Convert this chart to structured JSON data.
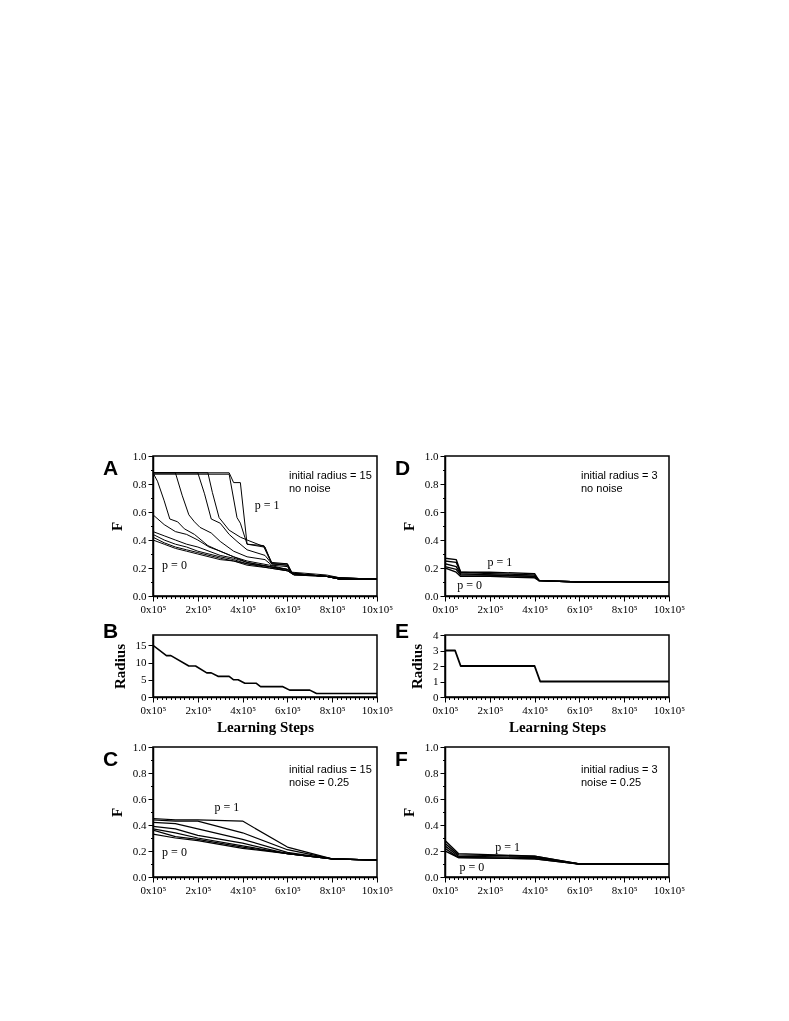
{
  "chart_data": [
    {
      "type": "line",
      "title": "A",
      "ylabel": "F",
      "annotations": [
        "initial radius = 15\nno noise",
        "p = 1",
        "p = 0"
      ],
      "xlim": [
        0,
        1000000
      ],
      "ylim": [
        0,
        1
      ],
      "xticks": [
        {
          "value": 0,
          "label": "0x10⁵"
        },
        {
          "value": 20000,
          "label": null
        },
        {
          "value": 40000,
          "label": null
        },
        {
          "value": 60000,
          "label": null
        },
        {
          "value": 80000,
          "label": null
        },
        {
          "value": 100000,
          "label": null
        },
        {
          "value": 120000,
          "label": null
        },
        {
          "value": 140000,
          "label": null
        },
        {
          "value": 160000,
          "label": null
        },
        {
          "value": 180000,
          "label": null
        },
        {
          "value": 200000,
          "label": "2x10⁵"
        },
        {
          "value": 220000,
          "label": null
        },
        {
          "value": 240000,
          "label": null
        },
        {
          "value": 260000,
          "label": null
        },
        {
          "value": 280000,
          "label": null
        },
        {
          "value": 300000,
          "label": null
        },
        {
          "value": 320000,
          "label": null
        },
        {
          "value": 340000,
          "label": null
        },
        {
          "value": 360000,
          "label": null
        },
        {
          "value": 380000,
          "label": null
        },
        {
          "value": 400000,
          "label": "4x10⁵"
        },
        {
          "value": 420000,
          "label": null
        },
        {
          "value": 440000,
          "label": null
        },
        {
          "value": 460000,
          "label": null
        },
        {
          "value": 480000,
          "label": null
        },
        {
          "value": 500000,
          "label": null
        },
        {
          "value": 520000,
          "label": null
        },
        {
          "value": 540000,
          "label": null
        },
        {
          "value": 560000,
          "label": null
        },
        {
          "value": 580000,
          "label": null
        },
        {
          "value": 600000,
          "label": "6x10⁵"
        },
        {
          "value": 620000,
          "label": null
        },
        {
          "value": 640000,
          "label": null
        },
        {
          "value": 660000,
          "label": null
        },
        {
          "value": 680000,
          "label": null
        },
        {
          "value": 700000,
          "label": null
        },
        {
          "value": 720000,
          "label": null
        },
        {
          "value": 740000,
          "label": null
        },
        {
          "value": 760000,
          "label": null
        },
        {
          "value": 780000,
          "label": null
        },
        {
          "value": 800000,
          "label": "8x10⁵"
        },
        {
          "value": 820000,
          "label": null
        },
        {
          "value": 840000,
          "label": null
        },
        {
          "value": 860000,
          "label": null
        },
        {
          "value": 880000,
          "label": null
        },
        {
          "value": 900000,
          "label": null
        },
        {
          "value": 920000,
          "label": null
        },
        {
          "value": 940000,
          "label": null
        },
        {
          "value": 960000,
          "label": null
        },
        {
          "value": 980000,
          "label": null
        },
        {
          "value": 1000000,
          "label": "10x10⁵"
        }
      ],
      "yticks": [
        {
          "value": 0,
          "label": "0.0"
        },
        {
          "value": 0.1,
          "label": null
        },
        0.2,
        {
          "value": 0.3,
          "label": null
        },
        0.4,
        {
          "value": 0.5,
          "label": null
        },
        0.6,
        {
          "value": 0.7,
          "label": null
        },
        0.8,
        {
          "value": 0.9,
          "label": null
        },
        {
          "value": 1,
          "label": "1.0"
        }
      ],
      "x": [
        0,
        50000,
        100000,
        150000,
        200000,
        250000,
        300000,
        360000,
        420000,
        520000,
        600000,
        630000,
        775000,
        835000,
        1000000
      ],
      "series": [
        {
          "color": "#000000",
          "values": [
            0.4,
            0.37,
            0.34,
            0.32,
            0.3,
            0.28,
            0.26,
            0.25,
            0.22,
            0.2,
            0.18,
            0.15,
            0.14,
            0.12,
            0.12
          ]
        },
        {
          "color": "#000000",
          "values": [
            0.42,
            0.38,
            0.35,
            0.33,
            0.31,
            0.29,
            0.27,
            0.25,
            0.23,
            0.2,
            0.18,
            0.15,
            0.14,
            0.12,
            0.12
          ]
        },
        {
          "color": "#000000",
          "values": [
            0.44,
            0.4,
            0.37,
            0.35,
            0.32,
            0.3,
            0.28,
            0.26,
            0.23,
            0.21,
            0.18,
            0.16,
            0.14,
            0.12,
            0.12
          ]
        },
        {
          "color": "#000000",
          "values": [
            0.46,
            0.43,
            0.4,
            0.37,
            0.35,
            0.32,
            0.29,
            0.27,
            0.24,
            0.21,
            0.19,
            0.16,
            0.14,
            0.12,
            0.12
          ]
        },
        {
          "color": "#000000",
          "values": [
            0.58,
            0.51,
            0.46,
            0.44,
            0.4,
            0.35,
            0.32,
            0.28,
            0.25,
            0.22,
            0.19,
            0.16,
            0.14,
            0.12,
            0.12
          ]
        },
        {
          "color": "#000000",
          "x": [
            0,
            20000,
            50000,
            75000,
            110000,
            140000,
            185000,
            245000,
            300000,
            360000,
            420000,
            520000,
            600000,
            630000,
            775000,
            835000,
            1000000
          ],
          "values": [
            0.88,
            0.82,
            0.68,
            0.55,
            0.53,
            0.48,
            0.44,
            0.36,
            0.32,
            0.28,
            0.24,
            0.21,
            0.19,
            0.16,
            0.14,
            0.12,
            0.12
          ]
        },
        {
          "color": "#000000",
          "x": [
            0,
            100000,
            130000,
            160000,
            185000,
            210000,
            260000,
            300000,
            360000,
            420000,
            500000,
            530000,
            600000,
            620000,
            775000,
            835000,
            1000000
          ],
          "values": [
            0.88,
            0.88,
            0.72,
            0.58,
            0.53,
            0.49,
            0.45,
            0.39,
            0.32,
            0.28,
            0.26,
            0.22,
            0.21,
            0.16,
            0.14,
            0.12,
            0.12
          ]
        },
        {
          "color": "#000000",
          "x": [
            0,
            200000,
            230000,
            260000,
            300000,
            340000,
            375000,
            420000,
            500000,
            530000,
            600000,
            620000,
            775000,
            835000,
            1000000
          ],
          "values": [
            0.88,
            0.88,
            0.73,
            0.55,
            0.52,
            0.44,
            0.39,
            0.33,
            0.29,
            0.23,
            0.22,
            0.16,
            0.14,
            0.13,
            0.12
          ]
        },
        {
          "color": "#000000",
          "x": [
            0,
            245000,
            265000,
            295000,
            340000,
            390000,
            420000,
            500000,
            530000,
            600000,
            620000,
            775000,
            835000,
            1000000
          ],
          "values": [
            0.88,
            0.88,
            0.74,
            0.56,
            0.47,
            0.42,
            0.4,
            0.35,
            0.23,
            0.22,
            0.16,
            0.14,
            0.13,
            0.12
          ]
        },
        {
          "color": "#000000",
          "x": [
            0,
            340000,
            375000,
            390000,
            420000,
            495000,
            530000,
            600000,
            620000,
            775000,
            835000,
            1000000
          ],
          "values": [
            0.87,
            0.87,
            0.56,
            0.52,
            0.37,
            0.35,
            0.23,
            0.23,
            0.16,
            0.14,
            0.13,
            0.12
          ]
        },
        {
          "color": "#000000",
          "x": [
            0,
            340000,
            360000,
            390000,
            420000,
            495000,
            530000,
            600000,
            620000,
            775000,
            835000,
            1000000
          ],
          "values": [
            0.88,
            0.88,
            0.81,
            0.81,
            0.37,
            0.36,
            0.24,
            0.23,
            0.17,
            0.15,
            0.13,
            0.12
          ]
        }
      ]
    },
    {
      "type": "line",
      "title": "D",
      "ylabel": "F",
      "annotations": [
        "initial radius = 3\nno noise",
        "p = 1",
        "p = 0"
      ],
      "xlim": [
        0,
        1000000
      ],
      "ylim": [
        0,
        1
      ],
      "xticks": [
        {
          "value": 0,
          "label": "0x10⁵"
        },
        {
          "value": 20000,
          "label": null
        },
        {
          "value": 40000,
          "label": null
        },
        {
          "value": 60000,
          "label": null
        },
        {
          "value": 80000,
          "label": null
        },
        {
          "value": 100000,
          "label": null
        },
        {
          "value": 120000,
          "label": null
        },
        {
          "value": 140000,
          "label": null
        },
        {
          "value": 160000,
          "label": null
        },
        {
          "value": 180000,
          "label": null
        },
        {
          "value": 200000,
          "label": "2x10⁵"
        },
        {
          "value": 220000,
          "label": null
        },
        {
          "value": 240000,
          "label": null
        },
        {
          "value": 260000,
          "label": null
        },
        {
          "value": 280000,
          "label": null
        },
        {
          "value": 300000,
          "label": null
        },
        {
          "value": 320000,
          "label": null
        },
        {
          "value": 340000,
          "label": null
        },
        {
          "value": 360000,
          "label": null
        },
        {
          "value": 380000,
          "label": null
        },
        {
          "value": 400000,
          "label": "4x10⁵"
        },
        {
          "value": 420000,
          "label": null
        },
        {
          "value": 440000,
          "label": null
        },
        {
          "value": 460000,
          "label": null
        },
        {
          "value": 480000,
          "label": null
        },
        {
          "value": 500000,
          "label": null
        },
        {
          "value": 520000,
          "label": null
        },
        {
          "value": 540000,
          "label": null
        },
        {
          "value": 560000,
          "label": null
        },
        {
          "value": 580000,
          "label": null
        },
        {
          "value": 600000,
          "label": "6x10⁵"
        },
        {
          "value": 620000,
          "label": null
        },
        {
          "value": 640000,
          "label": null
        },
        {
          "value": 660000,
          "label": null
        },
        {
          "value": 680000,
          "label": null
        },
        {
          "value": 700000,
          "label": null
        },
        {
          "value": 720000,
          "label": null
        },
        {
          "value": 740000,
          "label": null
        },
        {
          "value": 760000,
          "label": null
        },
        {
          "value": 780000,
          "label": null
        },
        {
          "value": 800000,
          "label": "8x10⁵"
        },
        {
          "value": 820000,
          "label": null
        },
        {
          "value": 840000,
          "label": null
        },
        {
          "value": 860000,
          "label": null
        },
        {
          "value": 880000,
          "label": null
        },
        {
          "value": 900000,
          "label": null
        },
        {
          "value": 920000,
          "label": null
        },
        {
          "value": 940000,
          "label": null
        },
        {
          "value": 960000,
          "label": null
        },
        {
          "value": 980000,
          "label": null
        },
        {
          "value": 1000000,
          "label": "10x10⁵"
        }
      ],
      "yticks": [
        {
          "value": 0,
          "label": "0.0"
        },
        {
          "value": 0.1,
          "label": null
        },
        0.2,
        {
          "value": 0.3,
          "label": null
        },
        0.4,
        {
          "value": 0.5,
          "label": null
        },
        0.6,
        {
          "value": 0.7,
          "label": null
        },
        0.8,
        {
          "value": 0.9,
          "label": null
        },
        {
          "value": 1,
          "label": "1.0"
        }
      ],
      "x": [
        0,
        50000,
        70000,
        200000,
        400000,
        420000,
        600000,
        1000000
      ],
      "series": [
        {
          "color": "#000000",
          "values": [
            0.2,
            0.17,
            0.14,
            0.14,
            0.13,
            0.11,
            0.1,
            0.1
          ]
        },
        {
          "color": "#000000",
          "values": [
            0.21,
            0.19,
            0.15,
            0.15,
            0.14,
            0.11,
            0.1,
            0.1
          ]
        },
        {
          "color": "#000000",
          "values": [
            0.23,
            0.21,
            0.16,
            0.15,
            0.14,
            0.11,
            0.1,
            0.1
          ]
        },
        {
          "color": "#000000",
          "values": [
            0.25,
            0.24,
            0.17,
            0.16,
            0.15,
            0.11,
            0.1,
            0.1
          ]
        },
        {
          "color": "#000000",
          "values": [
            0.27,
            0.26,
            0.17,
            0.17,
            0.16,
            0.11,
            0.1,
            0.1
          ]
        }
      ]
    },
    {
      "type": "line",
      "title": "B",
      "xlabel": "Learning Steps",
      "ylabel": "Radius",
      "xlim": [
        0,
        1000000
      ],
      "ylim": [
        0,
        18
      ],
      "xticks": [
        {
          "value": 0,
          "label": "0x10⁵"
        },
        {
          "value": 20000,
          "label": null
        },
        {
          "value": 40000,
          "label": null
        },
        {
          "value": 60000,
          "label": null
        },
        {
          "value": 80000,
          "label": null
        },
        {
          "value": 100000,
          "label": null
        },
        {
          "value": 120000,
          "label": null
        },
        {
          "value": 140000,
          "label": null
        },
        {
          "value": 160000,
          "label": null
        },
        {
          "value": 180000,
          "label": null
        },
        {
          "value": 200000,
          "label": "2x10⁵"
        },
        {
          "value": 220000,
          "label": null
        },
        {
          "value": 240000,
          "label": null
        },
        {
          "value": 260000,
          "label": null
        },
        {
          "value": 280000,
          "label": null
        },
        {
          "value": 300000,
          "label": null
        },
        {
          "value": 320000,
          "label": null
        },
        {
          "value": 340000,
          "label": null
        },
        {
          "value": 360000,
          "label": null
        },
        {
          "value": 380000,
          "label": null
        },
        {
          "value": 400000,
          "label": "4x10⁵"
        },
        {
          "value": 420000,
          "label": null
        },
        {
          "value": 440000,
          "label": null
        },
        {
          "value": 460000,
          "label": null
        },
        {
          "value": 480000,
          "label": null
        },
        {
          "value": 500000,
          "label": null
        },
        {
          "value": 520000,
          "label": null
        },
        {
          "value": 540000,
          "label": null
        },
        {
          "value": 560000,
          "label": null
        },
        {
          "value": 580000,
          "label": null
        },
        {
          "value": 600000,
          "label": "6x10⁵"
        },
        {
          "value": 620000,
          "label": null
        },
        {
          "value": 640000,
          "label": null
        },
        {
          "value": 660000,
          "label": null
        },
        {
          "value": 680000,
          "label": null
        },
        {
          "value": 700000,
          "label": null
        },
        {
          "value": 720000,
          "label": null
        },
        {
          "value": 740000,
          "label": null
        },
        {
          "value": 760000,
          "label": null
        },
        {
          "value": 780000,
          "label": null
        },
        {
          "value": 800000,
          "label": "8x10⁵"
        },
        {
          "value": 820000,
          "label": null
        },
        {
          "value": 840000,
          "label": null
        },
        {
          "value": 860000,
          "label": null
        },
        {
          "value": 880000,
          "label": null
        },
        {
          "value": 900000,
          "label": null
        },
        {
          "value": 920000,
          "label": null
        },
        {
          "value": 940000,
          "label": null
        },
        {
          "value": 960000,
          "label": null
        },
        {
          "value": 980000,
          "label": null
        },
        {
          "value": 1000000,
          "label": "10x10⁵"
        }
      ],
      "yticks": [
        0,
        5,
        10,
        15
      ],
      "x": [
        0,
        60000,
        80000,
        160000,
        190000,
        240000,
        260000,
        290000,
        340000,
        360000,
        380000,
        410000,
        460000,
        480000,
        580000,
        610000,
        700000,
        730000,
        1000000
      ],
      "series": [
        {
          "color": "#000000",
          "values": [
            15,
            12,
            12,
            9,
            9,
            7,
            7,
            6,
            6,
            5,
            5,
            4,
            4,
            3,
            3,
            2,
            2,
            1,
            1
          ]
        }
      ]
    },
    {
      "type": "line",
      "title": "E",
      "xlabel": "Learning Steps",
      "ylabel": "Radius",
      "xlim": [
        0,
        1000000
      ],
      "ylim": [
        0,
        4
      ],
      "xticks": [
        {
          "value": 0,
          "label": "0x10⁵"
        },
        {
          "value": 20000,
          "label": null
        },
        {
          "value": 40000,
          "label": null
        },
        {
          "value": 60000,
          "label": null
        },
        {
          "value": 80000,
          "label": null
        },
        {
          "value": 100000,
          "label": null
        },
        {
          "value": 120000,
          "label": null
        },
        {
          "value": 140000,
          "label": null
        },
        {
          "value": 160000,
          "label": null
        },
        {
          "value": 180000,
          "label": null
        },
        {
          "value": 200000,
          "label": "2x10⁵"
        },
        {
          "value": 220000,
          "label": null
        },
        {
          "value": 240000,
          "label": null
        },
        {
          "value": 260000,
          "label": null
        },
        {
          "value": 280000,
          "label": null
        },
        {
          "value": 300000,
          "label": null
        },
        {
          "value": 320000,
          "label": null
        },
        {
          "value": 340000,
          "label": null
        },
        {
          "value": 360000,
          "label": null
        },
        {
          "value": 380000,
          "label": null
        },
        {
          "value": 400000,
          "label": "4x10⁵"
        },
        {
          "value": 420000,
          "label": null
        },
        {
          "value": 440000,
          "label": null
        },
        {
          "value": 460000,
          "label": null
        },
        {
          "value": 480000,
          "label": null
        },
        {
          "value": 500000,
          "label": null
        },
        {
          "value": 520000,
          "label": null
        },
        {
          "value": 540000,
          "label": null
        },
        {
          "value": 560000,
          "label": null
        },
        {
          "value": 580000,
          "label": null
        },
        {
          "value": 600000,
          "label": "6x10⁵"
        },
        {
          "value": 620000,
          "label": null
        },
        {
          "value": 640000,
          "label": null
        },
        {
          "value": 660000,
          "label": null
        },
        {
          "value": 680000,
          "label": null
        },
        {
          "value": 700000,
          "label": null
        },
        {
          "value": 720000,
          "label": null
        },
        {
          "value": 740000,
          "label": null
        },
        {
          "value": 760000,
          "label": null
        },
        {
          "value": 780000,
          "label": null
        },
        {
          "value": 800000,
          "label": "8x10⁵"
        },
        {
          "value": 820000,
          "label": null
        },
        {
          "value": 840000,
          "label": null
        },
        {
          "value": 860000,
          "label": null
        },
        {
          "value": 880000,
          "label": null
        },
        {
          "value": 900000,
          "label": null
        },
        {
          "value": 920000,
          "label": null
        },
        {
          "value": 940000,
          "label": null
        },
        {
          "value": 960000,
          "label": null
        },
        {
          "value": 980000,
          "label": null
        },
        {
          "value": 1000000,
          "label": "10x10⁵"
        }
      ],
      "yticks": [
        0,
        1,
        2,
        3,
        4
      ],
      "x": [
        0,
        45000,
        70000,
        400000,
        425000,
        1000000
      ],
      "series": [
        {
          "color": "#000000",
          "values": [
            3,
            3,
            2,
            2,
            1,
            1
          ]
        }
      ]
    },
    {
      "type": "line",
      "title": "C",
      "ylabel": "F",
      "annotations": [
        "initial radius = 15\nnoise = 0.25",
        "p = 1",
        "p = 0"
      ],
      "xlim": [
        0,
        1000000
      ],
      "ylim": [
        0,
        1
      ],
      "xticks": [
        {
          "value": 0,
          "label": "0x10⁵"
        },
        {
          "value": 20000,
          "label": null
        },
        {
          "value": 40000,
          "label": null
        },
        {
          "value": 60000,
          "label": null
        },
        {
          "value": 80000,
          "label": null
        },
        {
          "value": 100000,
          "label": null
        },
        {
          "value": 120000,
          "label": null
        },
        {
          "value": 140000,
          "label": null
        },
        {
          "value": 160000,
          "label": null
        },
        {
          "value": 180000,
          "label": null
        },
        {
          "value": 200000,
          "label": "2x10⁵"
        },
        {
          "value": 220000,
          "label": null
        },
        {
          "value": 240000,
          "label": null
        },
        {
          "value": 260000,
          "label": null
        },
        {
          "value": 280000,
          "label": null
        },
        {
          "value": 300000,
          "label": null
        },
        {
          "value": 320000,
          "label": null
        },
        {
          "value": 340000,
          "label": null
        },
        {
          "value": 360000,
          "label": null
        },
        {
          "value": 380000,
          "label": null
        },
        {
          "value": 400000,
          "label": "4x10⁵"
        },
        {
          "value": 420000,
          "label": null
        },
        {
          "value": 440000,
          "label": null
        },
        {
          "value": 460000,
          "label": null
        },
        {
          "value": 480000,
          "label": null
        },
        {
          "value": 500000,
          "label": null
        },
        {
          "value": 520000,
          "label": null
        },
        {
          "value": 540000,
          "label": null
        },
        {
          "value": 560000,
          "label": null
        },
        {
          "value": 580000,
          "label": null
        },
        {
          "value": 600000,
          "label": "6x10⁵"
        },
        {
          "value": 620000,
          "label": null
        },
        {
          "value": 640000,
          "label": null
        },
        {
          "value": 660000,
          "label": null
        },
        {
          "value": 680000,
          "label": null
        },
        {
          "value": 700000,
          "label": null
        },
        {
          "value": 720000,
          "label": null
        },
        {
          "value": 740000,
          "label": null
        },
        {
          "value": 760000,
          "label": null
        },
        {
          "value": 780000,
          "label": null
        },
        {
          "value": 800000,
          "label": "8x10⁵"
        },
        {
          "value": 820000,
          "label": null
        },
        {
          "value": 840000,
          "label": null
        },
        {
          "value": 860000,
          "label": null
        },
        {
          "value": 880000,
          "label": null
        },
        {
          "value": 900000,
          "label": null
        },
        {
          "value": 920000,
          "label": null
        },
        {
          "value": 940000,
          "label": null
        },
        {
          "value": 960000,
          "label": null
        },
        {
          "value": 980000,
          "label": null
        },
        {
          "value": 1000000,
          "label": "10x10⁵"
        }
      ],
      "yticks": [
        {
          "value": 0,
          "label": "0.0"
        },
        {
          "value": 0.1,
          "label": null
        },
        0.2,
        {
          "value": 0.3,
          "label": null
        },
        0.4,
        {
          "value": 0.5,
          "label": null
        },
        0.6,
        {
          "value": 0.7,
          "label": null
        },
        0.8,
        {
          "value": 0.9,
          "label": null
        },
        {
          "value": 1,
          "label": "1.0"
        }
      ],
      "x": [
        0,
        100000,
        200000,
        400000,
        600000,
        800000,
        1000000
      ],
      "series": [
        {
          "color": "#000000",
          "values": [
            0.33,
            0.3,
            0.28,
            0.22,
            0.18,
            0.14,
            0.13
          ]
        },
        {
          "color": "#000000",
          "values": [
            0.36,
            0.31,
            0.29,
            0.23,
            0.18,
            0.14,
            0.13
          ]
        },
        {
          "color": "#000000",
          "values": [
            0.37,
            0.34,
            0.3,
            0.24,
            0.18,
            0.14,
            0.13
          ]
        },
        {
          "color": "#000000",
          "values": [
            0.39,
            0.37,
            0.32,
            0.26,
            0.18,
            0.14,
            0.13
          ]
        },
        {
          "color": "#000000",
          "values": [
            0.42,
            0.41,
            0.37,
            0.29,
            0.19,
            0.14,
            0.13
          ]
        },
        {
          "color": "#000000",
          "values": [
            0.44,
            0.43,
            0.43,
            0.34,
            0.21,
            0.14,
            0.13
          ]
        },
        {
          "color": "#000000",
          "values": [
            0.45,
            0.44,
            0.44,
            0.43,
            0.23,
            0.14,
            0.13
          ]
        }
      ]
    },
    {
      "type": "line",
      "title": "F",
      "ylabel": "F",
      "annotations": [
        "initial radius = 3\nnoise = 0.25",
        "p = 1",
        "p = 0"
      ],
      "xlim": [
        0,
        1000000
      ],
      "ylim": [
        0,
        1
      ],
      "xticks": [
        {
          "value": 0,
          "label": "0x10⁵"
        },
        {
          "value": 20000,
          "label": null
        },
        {
          "value": 40000,
          "label": null
        },
        {
          "value": 60000,
          "label": null
        },
        {
          "value": 80000,
          "label": null
        },
        {
          "value": 100000,
          "label": null
        },
        {
          "value": 120000,
          "label": null
        },
        {
          "value": 140000,
          "label": null
        },
        {
          "value": 160000,
          "label": null
        },
        {
          "value": 180000,
          "label": null
        },
        {
          "value": 200000,
          "label": "2x10⁵"
        },
        {
          "value": 220000,
          "label": null
        },
        {
          "value": 240000,
          "label": null
        },
        {
          "value": 260000,
          "label": null
        },
        {
          "value": 280000,
          "label": null
        },
        {
          "value": 300000,
          "label": null
        },
        {
          "value": 320000,
          "label": null
        },
        {
          "value": 340000,
          "label": null
        },
        {
          "value": 360000,
          "label": null
        },
        {
          "value": 380000,
          "label": null
        },
        {
          "value": 400000,
          "label": "4x10⁵"
        },
        {
          "value": 420000,
          "label": null
        },
        {
          "value": 440000,
          "label": null
        },
        {
          "value": 460000,
          "label": null
        },
        {
          "value": 480000,
          "label": null
        },
        {
          "value": 500000,
          "label": null
        },
        {
          "value": 520000,
          "label": null
        },
        {
          "value": 540000,
          "label": null
        },
        {
          "value": 560000,
          "label": null
        },
        {
          "value": 580000,
          "label": null
        },
        {
          "value": 600000,
          "label": "6x10⁵"
        },
        {
          "value": 620000,
          "label": null
        },
        {
          "value": 640000,
          "label": null
        },
        {
          "value": 660000,
          "label": null
        },
        {
          "value": 680000,
          "label": null
        },
        {
          "value": 700000,
          "label": null
        },
        {
          "value": 720000,
          "label": null
        },
        {
          "value": 740000,
          "label": null
        },
        {
          "value": 760000,
          "label": null
        },
        {
          "value": 780000,
          "label": null
        },
        {
          "value": 800000,
          "label": "8x10⁵"
        },
        {
          "value": 820000,
          "label": null
        },
        {
          "value": 840000,
          "label": null
        },
        {
          "value": 860000,
          "label": null
        },
        {
          "value": 880000,
          "label": null
        },
        {
          "value": 900000,
          "label": null
        },
        {
          "value": 920000,
          "label": null
        },
        {
          "value": 940000,
          "label": null
        },
        {
          "value": 960000,
          "label": null
        },
        {
          "value": 980000,
          "label": null
        },
        {
          "value": 1000000,
          "label": "10x10⁵"
        }
      ],
      "yticks": [
        {
          "value": 0,
          "label": "0.0"
        },
        {
          "value": 0.1,
          "label": null
        },
        0.2,
        {
          "value": 0.3,
          "label": null
        },
        0.4,
        {
          "value": 0.5,
          "label": null
        },
        0.6,
        {
          "value": 0.7,
          "label": null
        },
        0.8,
        {
          "value": 0.9,
          "label": null
        },
        {
          "value": 1,
          "label": "1.0"
        }
      ],
      "x": [
        0,
        60000,
        400000,
        600000,
        1000000
      ],
      "series": [
        {
          "color": "#000000",
          "values": [
            0.2,
            0.15,
            0.14,
            0.1,
            0.1
          ]
        },
        {
          "color": "#000000",
          "values": [
            0.22,
            0.15,
            0.14,
            0.1,
            0.1
          ]
        },
        {
          "color": "#000000",
          "values": [
            0.24,
            0.16,
            0.15,
            0.1,
            0.1
          ]
        },
        {
          "color": "#000000",
          "values": [
            0.26,
            0.17,
            0.16,
            0.1,
            0.1
          ]
        },
        {
          "color": "#000000",
          "values": [
            0.28,
            0.18,
            0.16,
            0.1,
            0.1
          ]
        }
      ]
    }
  ]
}
